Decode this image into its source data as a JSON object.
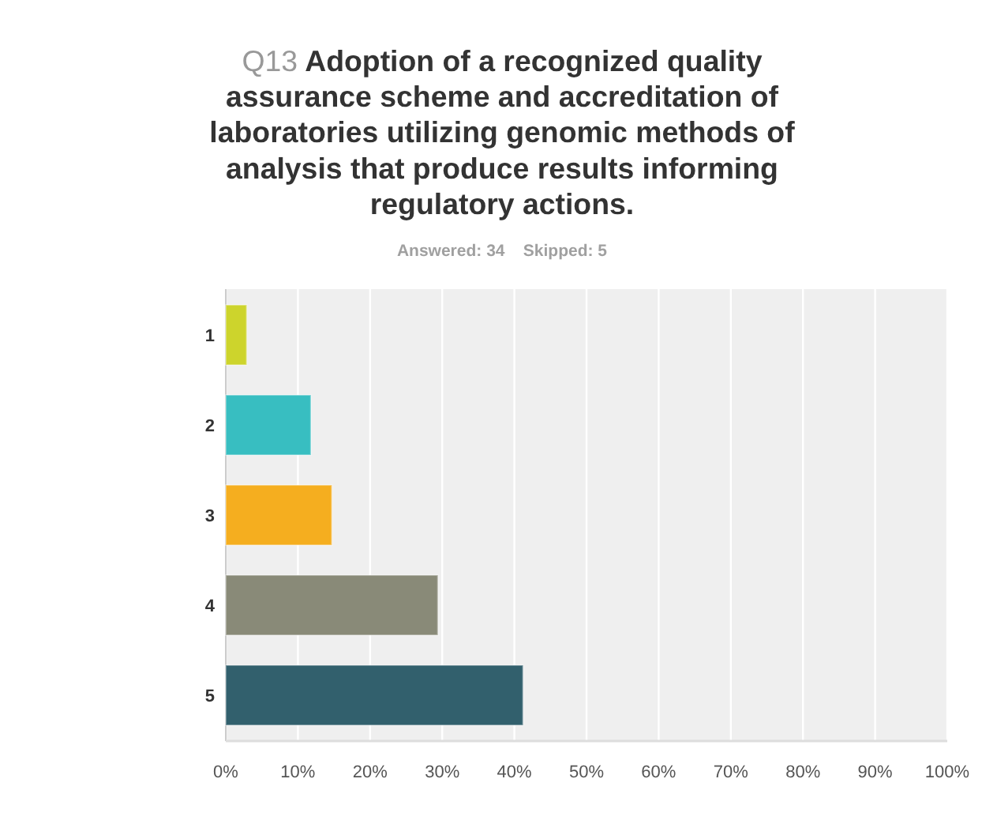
{
  "chart_data": {
    "type": "bar",
    "orientation": "horizontal",
    "title": "Q13 Adoption of a recognized quality assurance scheme and accreditation of laboratories utilizing genomic methods of analysis that produce results informing regulatory actions.",
    "subtitle": "Answered: 34    Skipped: 5",
    "categories": [
      "1",
      "2",
      "3",
      "4",
      "5"
    ],
    "values": [
      2.9,
      11.8,
      14.7,
      29.4,
      41.2
    ],
    "colors": [
      "#cdd42c",
      "#38bec1",
      "#f5ae1f",
      "#898a78",
      "#32606d"
    ],
    "xlim": [
      0,
      100
    ],
    "xticks": [
      {
        "value": 0,
        "label": "0%"
      },
      {
        "value": 10,
        "label": "10%"
      },
      {
        "value": 20,
        "label": "20%"
      },
      {
        "value": 30,
        "label": "30%"
      },
      {
        "value": 40,
        "label": "40%"
      },
      {
        "value": 50,
        "label": "50%"
      },
      {
        "value": 60,
        "label": "60%"
      },
      {
        "value": 70,
        "label": "70%"
      },
      {
        "value": 80,
        "label": "80%"
      },
      {
        "value": 90,
        "label": "90%"
      },
      {
        "value": 100,
        "label": "100%"
      }
    ],
    "grid": "x"
  }
}
